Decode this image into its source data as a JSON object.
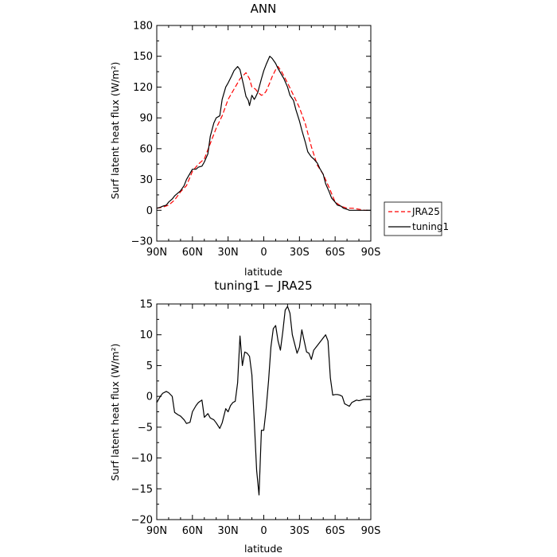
{
  "chart_data": [
    {
      "type": "line",
      "title": "ANN",
      "xlabel": "latitude",
      "ylabel": "Surf latent heat flux (W/m²)",
      "xlim": [
        90,
        -90
      ],
      "ylim": [
        -30,
        180
      ],
      "x_ticks": [
        90,
        60,
        30,
        0,
        -30,
        -60,
        -90
      ],
      "x_tick_labels": [
        "90N",
        "60N",
        "30N",
        "0",
        "30S",
        "60S",
        "90S"
      ],
      "y_ticks": [
        -30,
        0,
        30,
        60,
        90,
        120,
        150,
        180
      ],
      "y_tick_labels": [
        "−30",
        "0",
        "30",
        "60",
        "90",
        "120",
        "150",
        "180"
      ],
      "legend_position": "outside-right",
      "series": [
        {
          "name": "JRA25",
          "color": "#ff0000",
          "dash": "dashed",
          "x": [
            90,
            85,
            80,
            75,
            70,
            65,
            60,
            55,
            50,
            45,
            40,
            35,
            30,
            25,
            20,
            15,
            12,
            10,
            7,
            5,
            2,
            0,
            -2,
            -5,
            -7,
            -10,
            -12,
            -15,
            -20,
            -25,
            -30,
            -35,
            -40,
            -45,
            -50,
            -55,
            -60,
            -65,
            -70,
            -75,
            -80,
            -85,
            -90
          ],
          "y": [
            2,
            3,
            5,
            10,
            18,
            24,
            38,
            45,
            50,
            65,
            80,
            92,
            108,
            118,
            128,
            134,
            128,
            120,
            118,
            115,
            112,
            113,
            116,
            124,
            130,
            137,
            140,
            135,
            124,
            112,
            100,
            84,
            62,
            44,
            35,
            22,
            8,
            4,
            2,
            2,
            1,
            0,
            0
          ]
        },
        {
          "name": "tuning1",
          "color": "#000000",
          "dash": "solid",
          "x": [
            90,
            87,
            85,
            82,
            80,
            77,
            75,
            72,
            70,
            67,
            65,
            62,
            60,
            57,
            55,
            52,
            50,
            47,
            45,
            42,
            40,
            37,
            35,
            32,
            30,
            27,
            25,
            22,
            20,
            17,
            15,
            13,
            12,
            10,
            8,
            7,
            5,
            2,
            0,
            -2,
            -5,
            -7,
            -10,
            -12,
            -15,
            -17,
            -20,
            -22,
            -25,
            -27,
            -30,
            -32,
            -35,
            -37,
            -40,
            -42,
            -45,
            -47,
            -50,
            -52,
            -55,
            -57,
            -60,
            -62,
            -65,
            -67,
            -70,
            -72,
            -75,
            -77,
            -80,
            -82,
            -85,
            -87,
            -90
          ],
          "y": [
            2,
            3,
            4,
            5,
            8,
            11,
            14,
            17,
            19,
            24,
            30,
            36,
            40,
            40,
            42,
            43,
            47,
            55,
            72,
            85,
            90,
            92,
            108,
            120,
            124,
            131,
            136,
            140,
            137,
            122,
            111,
            107,
            102,
            112,
            108,
            110,
            115,
            128,
            136,
            142,
            150,
            148,
            143,
            138,
            132,
            128,
            120,
            112,
            107,
            98,
            87,
            78,
            66,
            57,
            52,
            50,
            46,
            41,
            35,
            26,
            18,
            12,
            8,
            5,
            4,
            2,
            1,
            0,
            0,
            0,
            0,
            0,
            0,
            0,
            0
          ]
        }
      ]
    },
    {
      "type": "line",
      "title": "tuning1 − JRA25",
      "xlabel": "latitude",
      "ylabel": "Surf latent heat flux (W/m²)",
      "xlim": [
        90,
        -90
      ],
      "ylim": [
        -20,
        15
      ],
      "x_ticks": [
        90,
        60,
        30,
        0,
        -30,
        -60,
        -90
      ],
      "x_tick_labels": [
        "90N",
        "60N",
        "30N",
        "0",
        "30S",
        "60S",
        "90S"
      ],
      "y_ticks": [
        -20,
        -15,
        -10,
        -5,
        0,
        5,
        10,
        15
      ],
      "y_tick_labels": [
        "−20",
        "−15",
        "−10",
        "−5",
        "0",
        "5",
        "10",
        "15"
      ],
      "series": [
        {
          "color": "#000000",
          "x": [
            90,
            87,
            85,
            82,
            80,
            77,
            75,
            72,
            70,
            67,
            65,
            62,
            60,
            57,
            55,
            52,
            50,
            47,
            45,
            42,
            40,
            37,
            35,
            32,
            30,
            28,
            26,
            24,
            22,
            20,
            18,
            16,
            14,
            12,
            10,
            8,
            6,
            4,
            2,
            0,
            -2,
            -4,
            -6,
            -8,
            -10,
            -12,
            -14,
            -16,
            -18,
            -20,
            -22,
            -24,
            -26,
            -28,
            -30,
            -32,
            -34,
            -36,
            -38,
            -40,
            -42,
            -44,
            -46,
            -48,
            -50,
            -52,
            -54,
            -56,
            -58,
            -60,
            -62,
            -64,
            -66,
            -68,
            -70,
            -72,
            -74,
            -76,
            -78,
            -80,
            -82,
            -84,
            -86,
            -88,
            -90
          ],
          "y": [
            -1,
            0,
            0.5,
            0.8,
            0.6,
            0,
            -2.6,
            -3,
            -3.2,
            -3.8,
            -4.4,
            -4.2,
            -2.5,
            -1.5,
            -1,
            -0.6,
            -3.4,
            -2.8,
            -3.5,
            -3.8,
            -4.3,
            -5.2,
            -4.3,
            -2,
            -2.5,
            -1.5,
            -1.0,
            -0.8,
            2.2,
            9.8,
            5.0,
            7.2,
            7.0,
            6.5,
            3.5,
            -4,
            -12,
            -16,
            -5.5,
            -5.5,
            -2,
            2.5,
            8,
            11,
            11.5,
            9,
            7.5,
            10.5,
            14,
            14.6,
            13.5,
            10,
            8.5,
            7,
            8,
            10.8,
            9,
            7.2,
            7,
            6,
            7.5,
            8,
            8.5,
            9,
            9.5,
            10,
            9,
            3,
            0.2,
            0.3,
            0.3,
            0.2,
            0,
            -1.2,
            -1.4,
            -1.6,
            -1.0,
            -0.8,
            -0.6,
            -0.7,
            -0.6,
            -0.5,
            -0.5,
            -0.5,
            -0.5
          ]
        }
      ]
    }
  ]
}
